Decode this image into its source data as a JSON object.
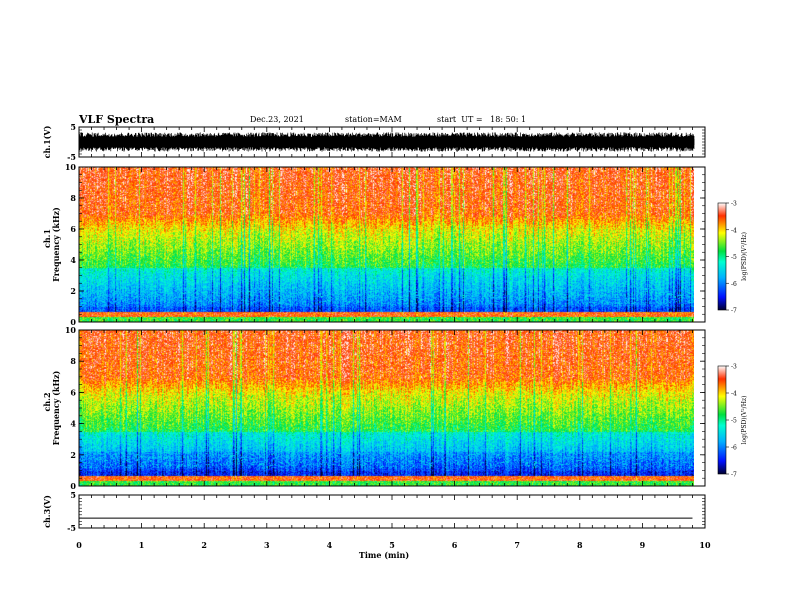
{
  "header": {
    "title": "VLF Spectra",
    "date": "Dec.23, 2021",
    "station": "station=MAM",
    "start_ut": "start  UT =   18: 50: 1"
  },
  "chart_data": [
    {
      "name": "ch1-waveform",
      "type": "line",
      "ylabel": "ch.1(V)",
      "ylim": [
        -5,
        5
      ],
      "yticks": [
        "5",
        "-5"
      ],
      "description_level": 3.2
    },
    {
      "name": "ch1-spectrogram",
      "type": "heatmap",
      "ylabel": "ch.1",
      "ylabel2": "Frequency  (kHz)",
      "ylim": [
        0,
        10
      ],
      "yticks": [
        "0",
        "2",
        "4",
        "6",
        "8",
        "10"
      ],
      "colorbar": {
        "label": "log(PSD)(V²/Hz)",
        "range": [
          -7,
          -3
        ],
        "ticks": [
          "-3",
          "-4",
          "-5",
          "-6",
          "-7"
        ]
      }
    },
    {
      "name": "ch2-spectrogram",
      "type": "heatmap",
      "ylabel": "ch.2",
      "ylabel2": "Frequency  (kHz)",
      "ylim": [
        0,
        10
      ],
      "yticks": [
        "0",
        "2",
        "4",
        "6",
        "8",
        "10"
      ],
      "colorbar": {
        "label": "log(PSD)(V²/Hz)",
        "range": [
          -7,
          -3
        ],
        "ticks": [
          "-3",
          "-4",
          "-5",
          "-6",
          "-7"
        ]
      }
    },
    {
      "name": "ch3-waveform",
      "type": "line",
      "ylabel": "ch.3(V)",
      "ylim": [
        -5,
        5
      ],
      "yticks": [
        "5",
        "-5"
      ],
      "x": [
        0,
        9.8
      ],
      "y": [
        -2.0,
        -2.0
      ]
    }
  ],
  "xaxis": {
    "label": "Time  (min)",
    "xlim": [
      0,
      10
    ],
    "ticks": [
      "0",
      "1",
      "2",
      "3",
      "4",
      "5",
      "6",
      "7",
      "8",
      "9",
      "10"
    ],
    "data_end_min": 9.83
  },
  "colors": {
    "high": "#ff2000",
    "mid_high": "#ffff00",
    "mid": "#00e060",
    "mid_low": "#00e0ff",
    "low": "#0020ff",
    "min": "#000040"
  }
}
